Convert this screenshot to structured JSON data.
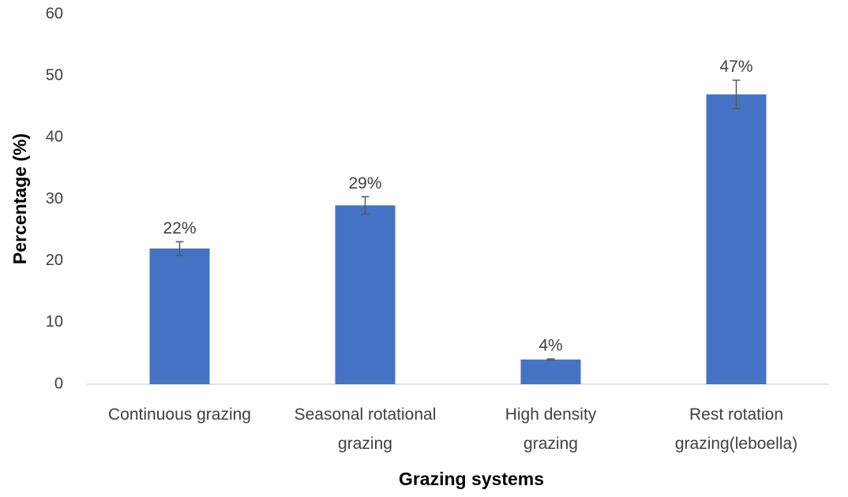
{
  "chart_data": {
    "type": "bar",
    "x_label": "Grazing systems",
    "y_label": "Percentage (%)",
    "categories": [
      "Continuous grazing",
      "Seasonal rotational grazing",
      "High density grazing",
      "Rest rotation grazing(leboella)"
    ],
    "values": [
      22,
      29,
      4,
      47
    ],
    "value_labels": [
      "22%",
      "29%",
      "4%",
      "47%"
    ],
    "errors": [
      1.1,
      1.4,
      0.1,
      2.3
    ],
    "color": "#4472c4",
    "ylim": [
      0,
      60
    ],
    "yticks": [
      0,
      10,
      20,
      30,
      40,
      50,
      60
    ],
    "grid": false
  }
}
